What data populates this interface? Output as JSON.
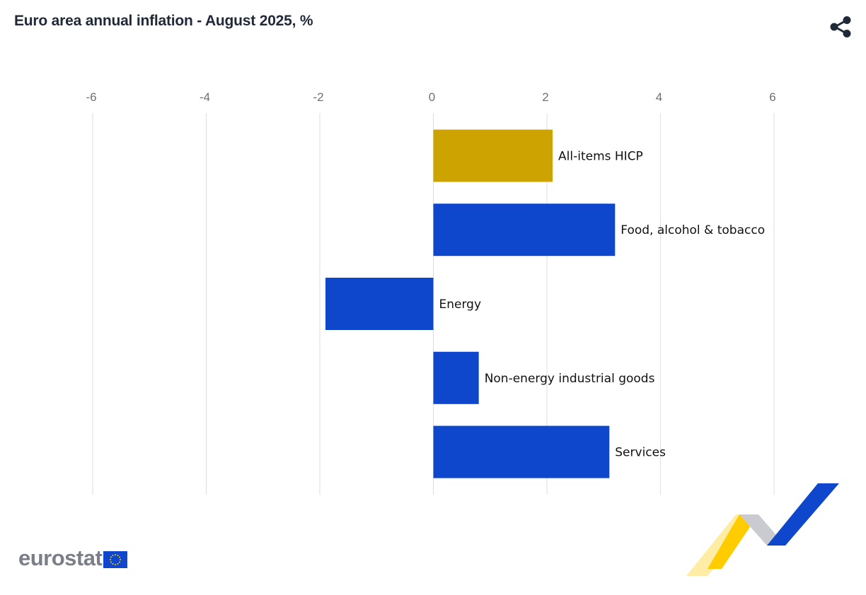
{
  "header": {
    "title": "Euro area annual inflation - August 2025, %",
    "share_icon": "share-icon"
  },
  "colors": {
    "highlight": "#CCA300",
    "bar": "#0E47CB",
    "grid": "#DDDDE3",
    "tick_text": "#6b6f76",
    "label_text": "#111111"
  },
  "chart_data": {
    "type": "bar",
    "orientation": "horizontal",
    "categories": [
      "All-items HICP",
      "Food, alcohol & tobacco",
      "Energy",
      "Non-energy industrial goods",
      "Services"
    ],
    "values": [
      2.1,
      3.2,
      -1.9,
      0.8,
      3.1
    ],
    "highlighted": "All-items HICP",
    "xlim": [
      -6,
      6
    ],
    "xticks": [
      "-6",
      "-4",
      "-2",
      "0",
      "2",
      "4",
      "6"
    ],
    "xtick_values": [
      -6,
      -4,
      -2,
      0,
      2,
      4,
      6
    ],
    "axis_position": "top",
    "grid": true,
    "legend": "none",
    "data_labels": "category name beside bar"
  },
  "footer": {
    "logo_text": "eurostat",
    "flag_icon": "eu-flag-icon",
    "ribbon": "eurostat-ribbon-graphic"
  }
}
